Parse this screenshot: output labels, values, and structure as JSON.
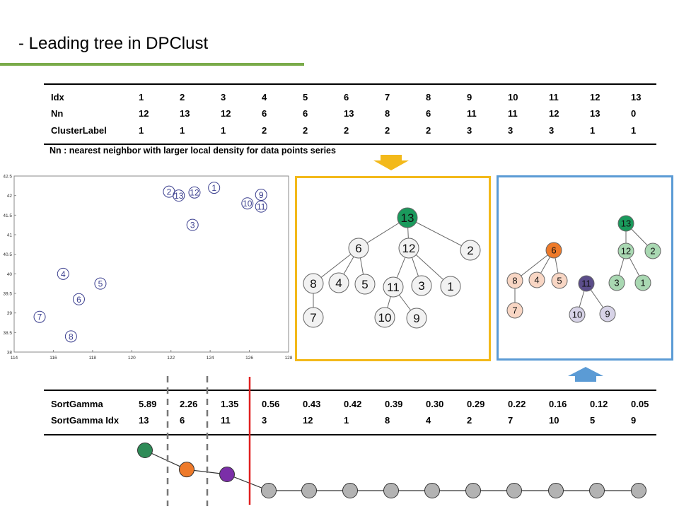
{
  "title": "- Leading tree in DPClust",
  "top_table": {
    "rows": [
      {
        "label": "Idx",
        "values": [
          "1",
          "2",
          "3",
          "4",
          "5",
          "6",
          "7",
          "8",
          "9",
          "10",
          "11",
          "12",
          "13"
        ]
      },
      {
        "label": "Nn",
        "values": [
          "12",
          "13",
          "12",
          "6",
          "6",
          "13",
          "8",
          "6",
          "11",
          "11",
          "12",
          "13",
          "0"
        ]
      },
      {
        "label": "ClusterLabel",
        "values": [
          "1",
          "1",
          "1",
          "2",
          "2",
          "2",
          "2",
          "2",
          "3",
          "3",
          "3",
          "1",
          "1"
        ]
      }
    ]
  },
  "note": "Nn : nearest neighbor with larger local density for data points series",
  "scatter": {
    "x_ticks": [
      "114",
      "116",
      "118",
      "120",
      "122",
      "124",
      "126",
      "128"
    ],
    "y_ticks": [
      "42.5",
      "42",
      "41.5",
      "41",
      "40.5",
      "40",
      "39.5",
      "39",
      "38.5",
      "38"
    ],
    "points": [
      {
        "label": "1",
        "x": 124.2,
        "y": 42.2
      },
      {
        "label": "2",
        "x": 121.9,
        "y": 42.1
      },
      {
        "label": "13",
        "x": 122.4,
        "y": 42.0
      },
      {
        "label": "12",
        "x": 123.2,
        "y": 42.08
      },
      {
        "label": "3",
        "x": 123.1,
        "y": 41.25
      },
      {
        "label": "9",
        "x": 126.6,
        "y": 42.02
      },
      {
        "label": "10",
        "x": 125.9,
        "y": 41.8
      },
      {
        "label": "11",
        "x": 126.6,
        "y": 41.72
      },
      {
        "label": "4",
        "x": 116.5,
        "y": 40.0
      },
      {
        "label": "5",
        "x": 118.4,
        "y": 39.75
      },
      {
        "label": "6",
        "x": 117.3,
        "y": 39.35
      },
      {
        "label": "7",
        "x": 115.3,
        "y": 38.9
      },
      {
        "label": "8",
        "x": 116.9,
        "y": 38.4
      }
    ]
  },
  "tree_plain": {
    "nodes": [
      "13",
      "6",
      "12",
      "2",
      "8",
      "4",
      "5",
      "11",
      "3",
      "1",
      "7",
      "10",
      "9"
    ],
    "root_color": "#1a9a5c"
  },
  "tree_colored": {
    "nodes": [
      "6",
      "8",
      "4",
      "5",
      "7",
      "11",
      "10",
      "9",
      "13",
      "12",
      "2",
      "3",
      "1"
    ],
    "colors": {
      "cluster1_root": "#1a9a5c",
      "cluster1": "#a9d8b2",
      "cluster2_root": "#ee7a2a",
      "cluster2": "#f8d6c4",
      "cluster3_root": "#5b4d8a",
      "cluster3": "#d7d3e7"
    }
  },
  "colors": {
    "yellow": "#f3b91a",
    "blue": "#5b9bd5",
    "green_rule": "#7aab4a",
    "red_line": "#e02020"
  },
  "bottom_table": {
    "rows": [
      {
        "label": "SortGamma",
        "values": [
          "5.89",
          "2.26",
          "1.35",
          "0.56",
          "0.43",
          "0.42",
          "0.39",
          "0.30",
          "0.29",
          "0.22",
          "0.16",
          "0.12",
          "0.05"
        ]
      },
      {
        "label": "SortGamma Idx",
        "values": [
          "13",
          "6",
          "11",
          "3",
          "12",
          "1",
          "8",
          "4",
          "2",
          "7",
          "10",
          "5",
          "9"
        ]
      }
    ]
  },
  "gamma_plot": {
    "values": [
      5.89,
      2.26,
      1.35,
      0.56,
      0.43,
      0.42,
      0.39,
      0.3,
      0.29,
      0.22,
      0.16,
      0.12,
      0.05
    ],
    "colors": [
      "#2e8b57",
      "#ee7a2a",
      "#7b2fa8",
      "#b3b3b3"
    ]
  }
}
